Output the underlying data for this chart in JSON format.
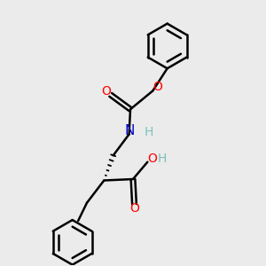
{
  "bg_color": "#ebebeb",
  "bond_color": "#000000",
  "O_color": "#ff0000",
  "N_color": "#0000cc",
  "H_color": "#7fbfbf",
  "lw": 1.8,
  "figsize": [
    3.0,
    3.0
  ],
  "dpi": 100,
  "xlim": [
    0,
    10
  ],
  "ylim": [
    0,
    10
  ]
}
